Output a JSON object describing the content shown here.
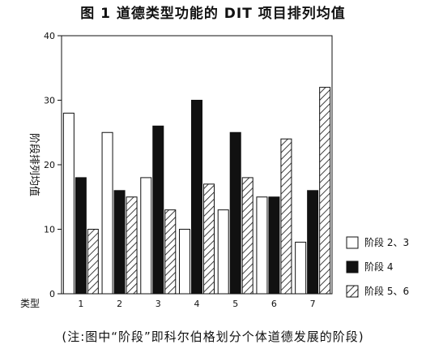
{
  "figure": {
    "title": "图 1   道德类型功能的 DIT 项目排列均值",
    "note": "(注:图中“阶段”即科尔伯格划分个体道德发展的阶段)"
  },
  "chart_data": {
    "type": "bar",
    "title": "图 1   道德类型功能的 DIT 项目排列均值",
    "xlabel": "类型",
    "ylabel": "阶段排列均值",
    "categories": [
      "1",
      "2",
      "3",
      "4",
      "5",
      "6",
      "7"
    ],
    "ylim": [
      0,
      40
    ],
    "yticks": [
      0,
      10,
      20,
      30,
      40
    ],
    "grid": false,
    "legend_position": "right",
    "series": [
      {
        "name": "阶段 2、3",
        "fill": "white",
        "values": [
          28,
          25,
          18,
          10,
          13,
          15,
          8
        ]
      },
      {
        "name": "阶段 4",
        "fill": "black",
        "values": [
          18,
          16,
          26,
          30,
          25,
          15,
          16
        ]
      },
      {
        "name": "阶段 5、6",
        "fill": "hatch",
        "values": [
          10,
          15,
          13,
          17,
          18,
          24,
          32
        ]
      }
    ]
  }
}
